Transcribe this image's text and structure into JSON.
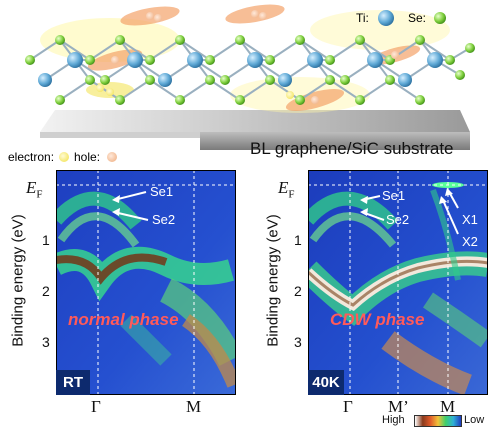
{
  "figure": {
    "atom_legend": {
      "ti_label": "Ti:",
      "se_label": "Se:"
    },
    "carrier_legend": {
      "electron_label": "electron:",
      "hole_label": "hole:"
    },
    "substrate_label": "BL graphene/SiC substrate",
    "y_axis_label": "Binding energy (eV)",
    "colors": {
      "ti_atom": "#5fa9d6",
      "se_atom": "#7fcf3d",
      "electron": "#f3e45a",
      "hole": "#f0b48a",
      "map_bg": "#1f45c8",
      "phase_text": "#ff5a5a"
    }
  },
  "panels": [
    {
      "id": "rt",
      "ef_label": "E",
      "ef_sub": "F",
      "y_ticks": [
        "1",
        "2",
        "3"
      ],
      "x_ticks": [
        "Γ",
        "M"
      ],
      "band_labels": [
        "Se1",
        "Se2"
      ],
      "phase_label": "normal phase",
      "temperature_label": "RT"
    },
    {
      "id": "cdw",
      "ef_label": "E",
      "ef_sub": "F",
      "y_ticks": [
        "1",
        "2",
        "3"
      ],
      "x_ticks": [
        "Γ",
        "M’",
        "M"
      ],
      "band_labels": [
        "Se1",
        "Se2",
        "X1",
        "X2"
      ],
      "phase_label": "CDW phase",
      "temperature_label": "40K"
    }
  ],
  "colorbar": {
    "high_label": "High",
    "low_label": "Low"
  }
}
